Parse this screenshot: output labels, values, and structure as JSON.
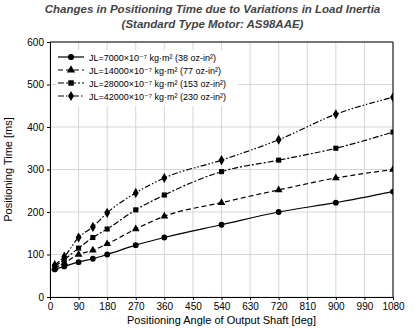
{
  "chart_data": {
    "type": "line",
    "title": "Changes in Positioning Time due to Variations in Load Inertia",
    "subtitle": "(Standard Type Motor: AS98AAE)",
    "x_label": "Positioning Angle of Output Shaft [deg]",
    "y_label": "Positioning Time [ms]",
    "x": [
      15,
      45,
      90,
      135,
      180,
      270,
      360,
      540,
      720,
      900,
      1080
    ],
    "series": [
      {
        "name": "JL=7000×10⁻⁷ kg·m² (38 oz-in²)",
        "color": "#000000",
        "marker": "circle",
        "line_style": "solid",
        "values": [
          65,
          72,
          82,
          90,
          100,
          122,
          140,
          170,
          200,
          222,
          248
        ]
      },
      {
        "name": "JL=14000×10⁻⁷ kg·m² (77 oz-in²)",
        "color": "#000000",
        "marker": "triangle",
        "line_style": "dashed",
        "values": [
          68,
          80,
          100,
          110,
          125,
          160,
          190,
          222,
          252,
          280,
          300
        ]
      },
      {
        "name": "JL=28000×10⁻⁷ kg·m² (153 oz-in²)",
        "color": "#000000",
        "marker": "square",
        "line_style": "dashdot",
        "values": [
          72,
          88,
          115,
          140,
          160,
          205,
          240,
          295,
          322,
          350,
          388
        ]
      },
      {
        "name": "JL=42000×10⁻⁷ kg·m² (230 oz-in²)",
        "color": "#000000",
        "marker": "diamond",
        "line_style": "dashdotdot",
        "values": [
          75,
          95,
          140,
          165,
          198,
          245,
          280,
          322,
          370,
          430,
          470
        ]
      }
    ],
    "xlim": [
      0,
      1080
    ],
    "xticks": [
      0,
      90,
      180,
      270,
      360,
      450,
      540,
      630,
      720,
      810,
      900,
      990,
      1080
    ],
    "ylim": [
      0,
      600
    ],
    "yticks": [
      0,
      100,
      200,
      300,
      400,
      500,
      600
    ],
    "grid": true,
    "legend": "upper left"
  }
}
